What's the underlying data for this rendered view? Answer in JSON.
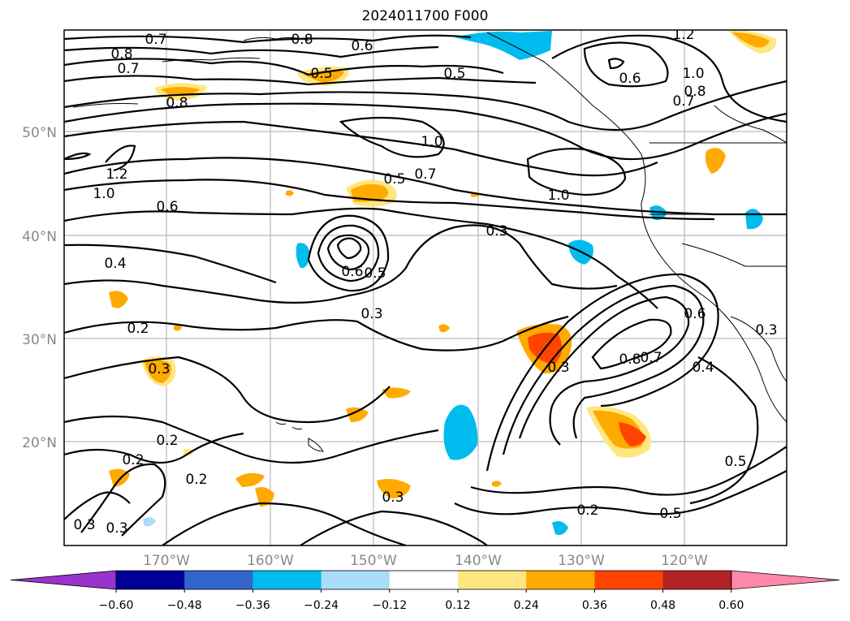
{
  "title": "2024011700 F000",
  "lat_labels": [
    "50°N",
    "40°N",
    "30°N",
    "20°N"
  ],
  "lon_labels": [
    "170°W",
    "160°W",
    "150°W",
    "140°W",
    "130°W",
    "120°W"
  ],
  "contour_labels": [
    "0.7",
    "0.8",
    "0.6",
    "0.5",
    "0.8",
    "0.7",
    "0.8",
    "0.5",
    "0.6",
    "1.2",
    "1.0",
    "0.8",
    "0.7",
    "1.0",
    "0.7",
    "1.0",
    "0.5",
    "1.2",
    "1.0",
    "0.6",
    "0.3",
    "0.4",
    "0.6",
    "0.5",
    "0.3",
    "0.2",
    "0.3",
    "0.3",
    "0.8",
    "0.7",
    "0.4",
    "0.5",
    "0.2",
    "0.2",
    "0.2",
    "0.3",
    "0.3",
    "0.2",
    "0.5",
    "0.3",
    "0.6",
    "0.3"
  ],
  "colorbar": {
    "ticks": [
      "−0.60",
      "−0.48",
      "−0.36",
      "−0.24",
      "−0.12",
      "0.12",
      "0.24",
      "0.36",
      "0.48",
      "0.60"
    ],
    "colors": [
      "#9933cc",
      "#000099",
      "#3366cc",
      "#00bbee",
      "#aaddf7",
      "#ffffff",
      "#ffe680",
      "#ffaa00",
      "#ff4400",
      "#b22222",
      "#ff88aa"
    ]
  }
}
